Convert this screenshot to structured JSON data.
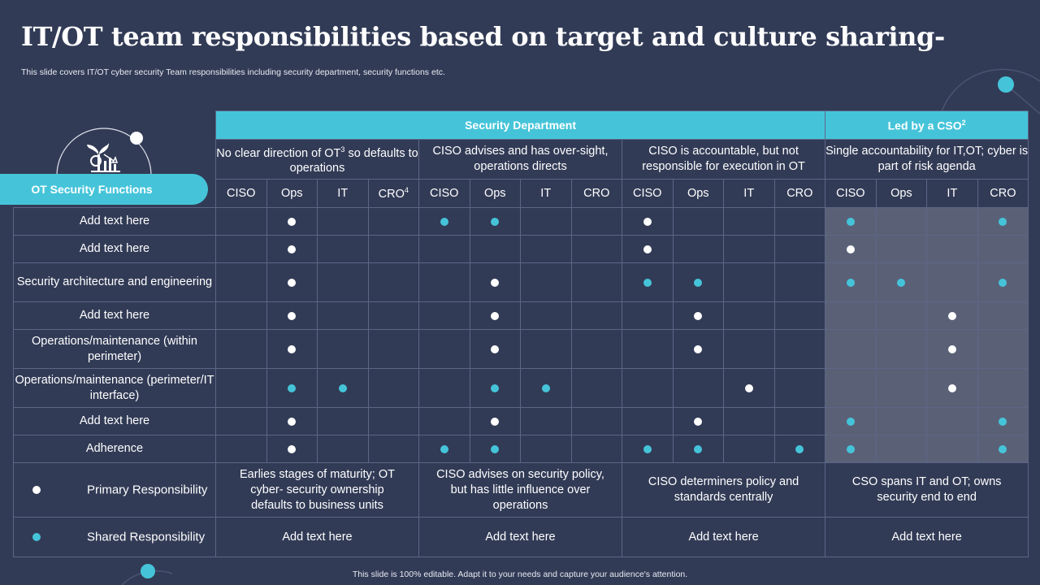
{
  "slide": {
    "title": "IT/OT team responsibilities based on target and culture sharing-",
    "subtitle": "This slide covers IT/OT cyber security Team responsibilities including security department, security functions etc.",
    "footer": "This slide is 100% editable. Adapt it to your needs and capture your audience's attention."
  },
  "colors": {
    "background": "#323b56",
    "accent": "#45c4d9",
    "shaded": "#5a6177",
    "primary_dot": "#ffffff",
    "shared_dot": "#45c4d9"
  },
  "table": {
    "row_header_label": "OT Security Functions",
    "group_headers": [
      {
        "label": "Security Department",
        "sup": ""
      },
      {
        "label": "Led by a CSO",
        "sup": "2"
      }
    ],
    "column_groups": [
      {
        "desc": "No clear direction of OT",
        "desc_sup": "3",
        "desc_rest": " so defaults to operations"
      },
      {
        "desc": "CISO advises and has over-sight, operations directs",
        "desc_sup": "",
        "desc_rest": ""
      },
      {
        "desc": "CISO is accountable, but not responsible for execution in OT",
        "desc_sup": "",
        "desc_rest": ""
      },
      {
        "desc": "Single accountability for IT,OT; cyber is part of risk agenda",
        "desc_sup": "",
        "desc_rest": ""
      }
    ],
    "sub_columns": [
      [
        "CISO",
        "Ops",
        "IT",
        "CRO"
      ],
      [
        "CISO",
        "Ops",
        "IT",
        "CRO"
      ],
      [
        "CISO",
        "Ops",
        "IT",
        "CRO"
      ],
      [
        "CISO",
        "Ops",
        "IT",
        "CRO"
      ]
    ],
    "sub_column_sup": [
      [
        "",
        "",
        "",
        "4"
      ],
      [
        "",
        "",
        "",
        ""
      ],
      [
        "",
        "",
        "",
        ""
      ],
      [
        "",
        "",
        "",
        ""
      ]
    ],
    "rows": [
      {
        "label": "Add text here",
        "marks": [
          "",
          "P",
          "",
          "",
          "S",
          "S",
          "",
          "",
          "P",
          "",
          "",
          "",
          "S",
          "",
          "",
          "S"
        ]
      },
      {
        "label": "Add text here",
        "marks": [
          "",
          "P",
          "",
          "",
          "",
          "",
          "",
          "",
          "P",
          "",
          "",
          "",
          "P",
          "",
          "",
          ""
        ]
      },
      {
        "label": "Security architecture and engineering",
        "marks": [
          "",
          "P",
          "",
          "",
          "",
          "P",
          "",
          "",
          "S",
          "S",
          "",
          "",
          "S",
          "S",
          "",
          "S"
        ]
      },
      {
        "label": "Add text here",
        "marks": [
          "",
          "P",
          "",
          "",
          "",
          "P",
          "",
          "",
          "",
          "P",
          "",
          "",
          "",
          "",
          "P",
          ""
        ]
      },
      {
        "label": "Operations/maintenance (within perimeter)",
        "marks": [
          "",
          "P",
          "",
          "",
          "",
          "P",
          "",
          "",
          "",
          "P",
          "",
          "",
          "",
          "",
          "P",
          ""
        ]
      },
      {
        "label": "Operations/maintenance (perimeter/IT interface)",
        "marks": [
          "",
          "S",
          "S",
          "",
          "",
          "S",
          "S",
          "",
          "",
          "",
          "P",
          "",
          "",
          "",
          "P",
          ""
        ]
      },
      {
        "label": "Add text here",
        "marks": [
          "",
          "P",
          "",
          "",
          "",
          "P",
          "",
          "",
          "",
          "P",
          "",
          "",
          "S",
          "",
          "",
          "S"
        ]
      },
      {
        "label": "Adherence",
        "marks": [
          "",
          "P",
          "",
          "",
          "S",
          "S",
          "",
          "",
          "S",
          "S",
          "",
          "S",
          "S",
          "",
          "",
          "S"
        ]
      }
    ],
    "legend": [
      {
        "label": "Primary Responsibility",
        "type": "P"
      },
      {
        "label": "Shared Responsibility",
        "type": "S"
      }
    ],
    "stage_notes": [
      "Earlies stages of maturity; OT cyber- security ownership defaults to business units",
      "CISO advises on security policy, but has little influence over operations",
      "CISO determiners policy and standards centrally",
      "CSO spans IT and OT; owns security end to end"
    ],
    "shared_notes": [
      "Add text here",
      "Add text here",
      "Add text here",
      "Add text here"
    ]
  }
}
